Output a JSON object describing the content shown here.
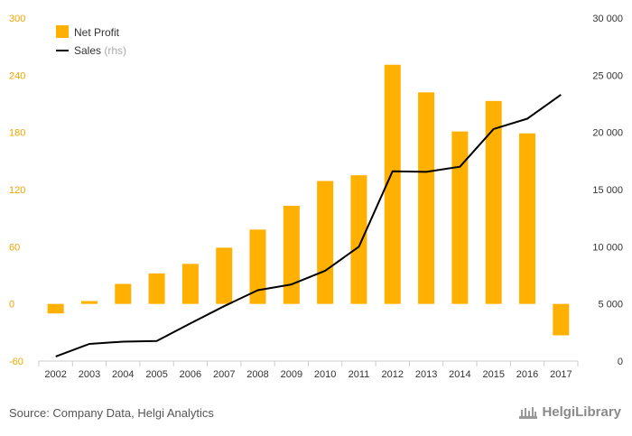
{
  "chart_data": {
    "type": "bar",
    "categories": [
      "2002",
      "2003",
      "2004",
      "2005",
      "2006",
      "2007",
      "2008",
      "2009",
      "2010",
      "2011",
      "2012",
      "2013",
      "2014",
      "2015",
      "2016",
      "2017"
    ],
    "series": [
      {
        "name": "Net Profit",
        "type": "bar",
        "axis": "left",
        "color": "#FFB000",
        "values": [
          -10,
          3,
          21,
          32,
          42,
          59,
          78,
          103,
          129,
          135,
          251,
          222,
          181,
          213,
          179,
          -33
        ]
      },
      {
        "name": "Sales",
        "name_suffix": "(rhs)",
        "type": "line",
        "axis": "right",
        "color": "#000000",
        "values": [
          400,
          1500,
          1700,
          1750,
          3300,
          4800,
          6200,
          6700,
          7900,
          10000,
          16600,
          16550,
          17000,
          20300,
          21200,
          23300
        ]
      }
    ],
    "y_left": {
      "ylim": [
        -60,
        300
      ],
      "ticks": [
        -60,
        0,
        60,
        120,
        180,
        240,
        300
      ],
      "tick_labels": [
        "-60",
        "0",
        "60",
        "120",
        "180",
        "240",
        "300"
      ],
      "tick_color": "#F0A500"
    },
    "y_right": {
      "ylim": [
        0,
        30000
      ],
      "ticks": [
        0,
        5000,
        10000,
        15000,
        20000,
        25000,
        30000
      ],
      "tick_labels": [
        "0",
        "5 000",
        "10 000",
        "15 000",
        "20 000",
        "25 000",
        "30 000"
      ]
    },
    "legend_position": "top-left",
    "grid": false
  },
  "footer": {
    "source": "Source: Company Data, Helgi Analytics",
    "brand": "HelgiLibrary"
  },
  "colors": {
    "bar": "#FFB000",
    "line": "#000000",
    "left_axis_text": "#F0A500",
    "axis_text": "#333333",
    "rhs_text": "#aaaaaa"
  }
}
